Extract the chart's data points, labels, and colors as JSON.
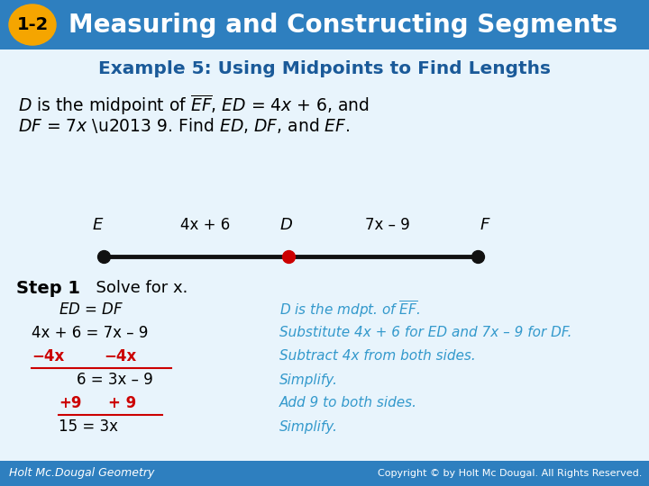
{
  "header_bg_color": "#2e7fbf",
  "header_badge_color": "#f5a500",
  "header_badge_text": "1-2",
  "header_title": "Measuring and Constructing Segments",
  "header_title_color": "#ffffff",
  "example_title": "Example 5: Using Midpoints to Find Lengths",
  "example_title_color": "#1a5a99",
  "body_bg_color": "#e8f4fc",
  "segment_line_color": "#111111",
  "segment_dot_e_color": "#111111",
  "segment_dot_d_color": "#cc0000",
  "segment_dot_f_color": "#111111",
  "red_color": "#cc0000",
  "blue_color": "#3399cc",
  "black_color": "#000000",
  "white_color": "#ffffff",
  "footer_bg_color": "#2e7fbf",
  "footer_left": "Holt Mc.Dougal Geometry",
  "footer_right": "Copyright © by Holt Mc Dougal. All Rights Reserved."
}
